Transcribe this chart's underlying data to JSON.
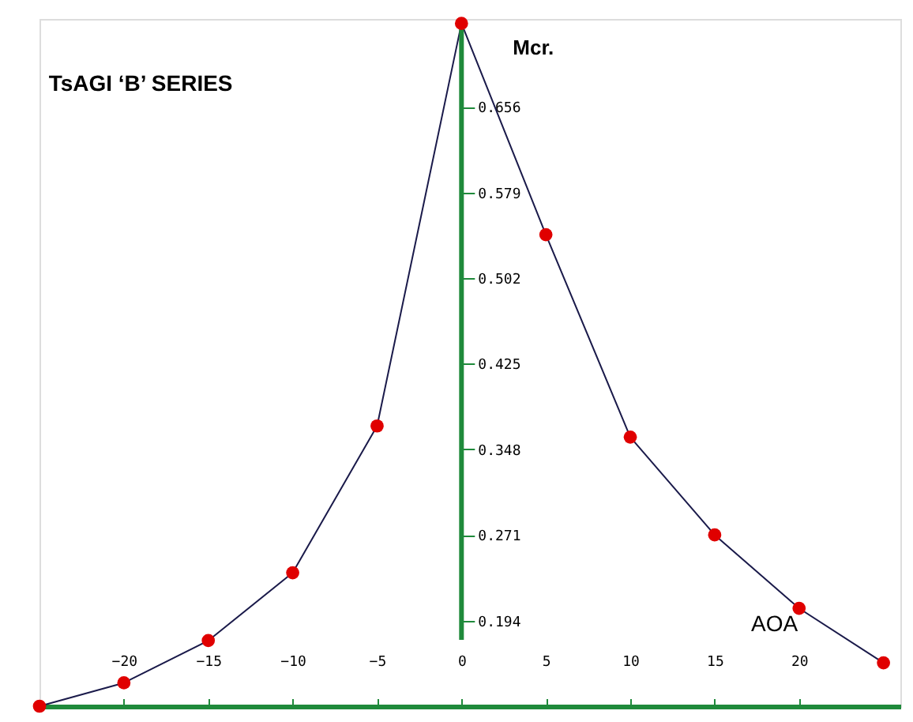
{
  "chart_data": {
    "type": "line",
    "title": "TsAGI ‘B’ SERIES",
    "xlabel": "AOA",
    "ylabel": "Mcr.",
    "x": [
      -25,
      -20,
      -15,
      -10,
      -5,
      0,
      5,
      10,
      15,
      20,
      25
    ],
    "series": [
      {
        "color": "#1a1a4a",
        "values": [
          0.117,
          0.138,
          0.176,
          0.237,
          0.369,
          0.731,
          0.541,
          0.359,
          0.271,
          0.205,
          0.156
        ]
      }
    ],
    "marker": "circle",
    "line_style": "solid",
    "grid": false,
    "xlim": [
      -25,
      26
    ],
    "ylim": [
      0.117,
      0.735
    ],
    "xticks": [
      -20,
      -15,
      -10,
      -5,
      0,
      5,
      10,
      15,
      20
    ],
    "yticks": [
      0.194,
      0.271,
      0.348,
      0.425,
      0.502,
      0.579,
      0.656
    ]
  }
}
